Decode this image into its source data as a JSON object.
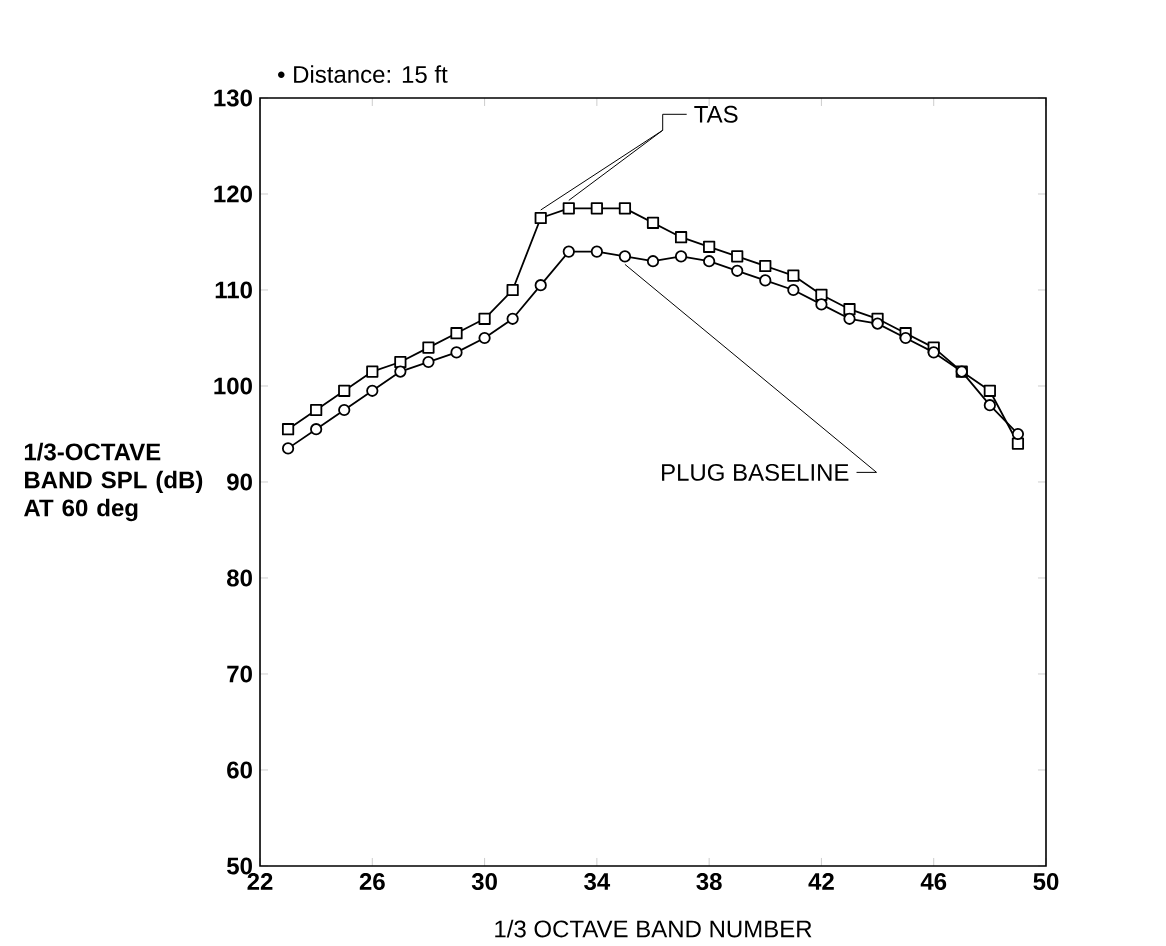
{
  "chart_data": {
    "type": "line",
    "xlabel": "1/3 OCTAVE BAND NUMBER",
    "ylabel": "1/3-OCTAVE BAND SPL (dB) AT 60 deg",
    "annotations": [
      "• Distance:  15 ft"
    ],
    "x": [
      23,
      24,
      25,
      26,
      27,
      28,
      29,
      30,
      31,
      32,
      33,
      34,
      35,
      36,
      37,
      38,
      39,
      40,
      41,
      42,
      43,
      44,
      45,
      46,
      47,
      48,
      49
    ],
    "series": [
      {
        "name": "TAS",
        "color": "#000000",
        "marker": "square",
        "values": [
          95.5,
          97.5,
          99.5,
          101.5,
          102.5,
          104,
          105.5,
          107,
          110,
          117.5,
          118.5,
          118.5,
          118.5,
          117,
          115.5,
          114.5,
          113.5,
          112.5,
          111.5,
          109.5,
          108,
          107,
          105.5,
          104,
          101.5,
          99.5,
          94
        ]
      },
      {
        "name": "PLUG BASELINE",
        "color": "#000000",
        "marker": "circle",
        "values": [
          93.5,
          95.5,
          97.5,
          99.5,
          101.5,
          102.5,
          103.5,
          105,
          107,
          110.5,
          114,
          114,
          113.5,
          113,
          113.5,
          113,
          112,
          111,
          110,
          108.5,
          107,
          106.5,
          105,
          103.5,
          101.5,
          98,
          95
        ]
      }
    ],
    "xlim": [
      22,
      50
    ],
    "ylim": [
      50,
      130
    ],
    "xticks": [
      22,
      26,
      30,
      34,
      38,
      42,
      46,
      50
    ],
    "yticks": [
      50,
      60,
      70,
      80,
      90,
      100,
      110,
      120,
      130
    ],
    "line_style": "solid"
  }
}
